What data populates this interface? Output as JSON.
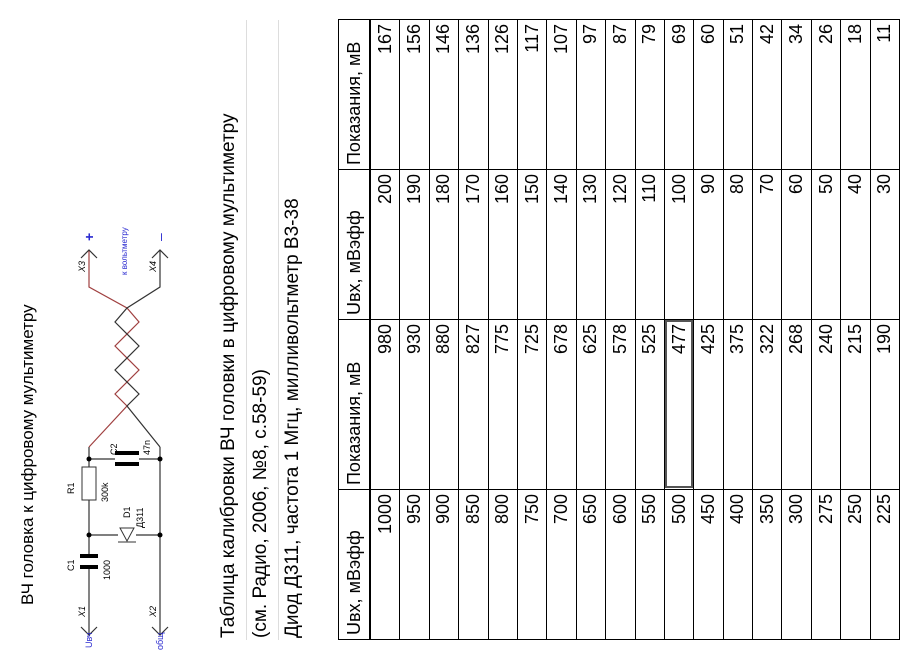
{
  "caption": "ВЧ головка к цифровому мультиметру",
  "schematic": {
    "labels": {
      "x1": "X1",
      "x2": "X2",
      "x3": "X3",
      "x4": "X4",
      "c1": "C1",
      "c1_value": "1000",
      "r1": "R1",
      "r1_value": "300k",
      "d1": "D1",
      "d1_value": "Д311",
      "c2": "C2",
      "c2_value": "47n",
      "in": "Uвч",
      "common": "общ",
      "plus": "+",
      "minus": "–",
      "to_meter": "к вольтметру"
    },
    "colors": {
      "wire_red": "#a04040",
      "label_blue": "#2a2ad0"
    }
  },
  "title": {
    "line1": "Таблица калибровки ВЧ головки в цифровому мультиметру",
    "line2": "(см. Радио, 2006, №8, с.58-59)",
    "line3": "Диод Д311, частота 1 Мгц, милливольтметр В3-38"
  },
  "table": {
    "headers": [
      "Uвх, мВэфф",
      "Показания, мВ",
      "Uвх, мВэфф",
      "Показания, мВ"
    ],
    "rows": [
      [
        "1000",
        "980",
        "200",
        "167"
      ],
      [
        "950",
        "930",
        "190",
        "156"
      ],
      [
        "900",
        "880",
        "180",
        "146"
      ],
      [
        "850",
        "827",
        "170",
        "136"
      ],
      [
        "800",
        "775",
        "160",
        "126"
      ],
      [
        "750",
        "725",
        "150",
        "117"
      ],
      [
        "700",
        "678",
        "140",
        "107"
      ],
      [
        "650",
        "625",
        "130",
        "97"
      ],
      [
        "600",
        "578",
        "120",
        "87"
      ],
      [
        "550",
        "525",
        "110",
        "79"
      ],
      [
        "500",
        "477",
        "100",
        "69"
      ],
      [
        "450",
        "425",
        "90",
        "60"
      ],
      [
        "400",
        "375",
        "80",
        "51"
      ],
      [
        "350",
        "322",
        "70",
        "42"
      ],
      [
        "300",
        "268",
        "60",
        "34"
      ],
      [
        "275",
        "240",
        "50",
        "26"
      ],
      [
        "250",
        "215",
        "40",
        "18"
      ],
      [
        "225",
        "190",
        "30",
        "11"
      ]
    ],
    "selected_cell": "477"
  }
}
